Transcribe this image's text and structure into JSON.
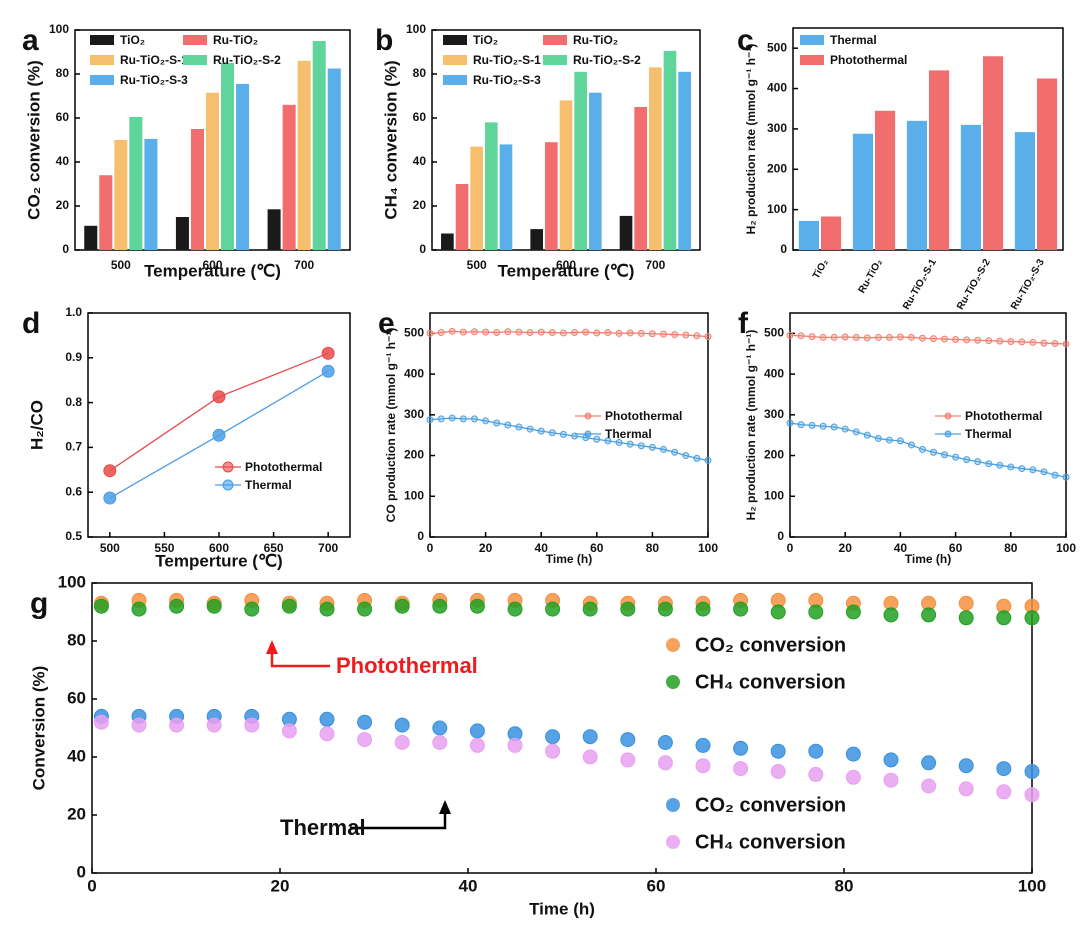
{
  "chart_data": [
    {
      "type": "bar",
      "panel_label": "a",
      "categories": [
        "500",
        "600",
        "700"
      ],
      "series": [
        {
          "name": "TiO₂",
          "color": "#1a1a1a",
          "values": [
            11,
            15,
            18.5
          ]
        },
        {
          "name": "Ru-TiO₂",
          "color": "#f26d6d",
          "values": [
            34,
            55,
            66
          ]
        },
        {
          "name": "Ru-TiO₂-S-1",
          "color": "#f5bf6e",
          "values": [
            50,
            71.5,
            86
          ]
        },
        {
          "name": "Ru-TiO₂-S-2",
          "color": "#5fd49b",
          "values": [
            60.5,
            85,
            95
          ]
        },
        {
          "name": "Ru-TiO₂-S-3",
          "color": "#5aaeea",
          "values": [
            50.5,
            75.5,
            82.5
          ]
        }
      ],
      "ylim": [
        0,
        100
      ],
      "yticks": [
        0,
        20,
        40,
        60,
        80,
        100
      ],
      "xlabel": "Temperature (℃)",
      "ylabel": "CO₂ conversion (%)"
    },
    {
      "type": "bar",
      "panel_label": "b",
      "categories": [
        "500",
        "600",
        "700"
      ],
      "series": [
        {
          "name": "TiO₂",
          "color": "#1a1a1a",
          "values": [
            7.5,
            9.5,
            15.5
          ]
        },
        {
          "name": "Ru-TiO₂",
          "color": "#f26d6d",
          "values": [
            30,
            49,
            65
          ]
        },
        {
          "name": "Ru-TiO₂-S-1",
          "color": "#f5bf6e",
          "values": [
            47,
            68,
            83
          ]
        },
        {
          "name": "Ru-TiO₂-S-2",
          "color": "#5fd49b",
          "values": [
            58,
            81,
            90.5
          ]
        },
        {
          "name": "Ru-TiO₂-S-3",
          "color": "#5aaeea",
          "values": [
            48,
            71.5,
            81
          ]
        }
      ],
      "ylim": [
        0,
        100
      ],
      "yticks": [
        0,
        20,
        40,
        60,
        80,
        100
      ],
      "xlabel": "Temperature (℃)",
      "ylabel": "CH₄ conversion (%)"
    },
    {
      "type": "bar",
      "panel_label": "c",
      "categories": [
        "TiO₂",
        "Ru-TiO₂",
        "Ru-TiO₂-S-1",
        "Ru-TiO₂-S-2",
        "Ru-TiO₂-S-3"
      ],
      "series": [
        {
          "name": "Thermal",
          "color": "#5aaeea",
          "values": [
            72,
            288,
            320,
            310,
            292
          ]
        },
        {
          "name": "Photothermal",
          "color": "#f26d6d",
          "values": [
            83,
            345,
            445,
            480,
            425
          ]
        }
      ],
      "ylim": [
        0,
        550
      ],
      "yticks": [
        0,
        100,
        200,
        300,
        400,
        500
      ],
      "ylabel": "H₂ production rate (mmol g⁻¹ h⁻¹)"
    },
    {
      "type": "line",
      "panel_label": "d",
      "x": [
        500,
        600,
        700
      ],
      "series": [
        {
          "name": "Photothermal",
          "color": "#e84a4a",
          "values": [
            0.648,
            0.813,
            0.91
          ]
        },
        {
          "name": "Thermal",
          "color": "#4a9de8",
          "values": [
            0.587,
            0.727,
            0.87
          ]
        }
      ],
      "xlim": [
        480,
        720
      ],
      "xticks": [
        500,
        550,
        600,
        650,
        700
      ],
      "ylim": [
        0.5,
        1.0
      ],
      "yticks": [
        0.5,
        0.6,
        0.7,
        0.8,
        0.9,
        {
          "value": 1.0,
          "label": "1.0"
        }
      ],
      "xlabel": "Temperture (℃)",
      "ylabel": "H₂/CO"
    },
    {
      "type": "line",
      "panel_label": "e",
      "x": [
        0,
        4,
        8,
        12,
        16,
        20,
        24,
        28,
        32,
        36,
        40,
        44,
        48,
        52,
        56,
        60,
        64,
        68,
        72,
        76,
        80,
        84,
        88,
        92,
        96,
        100
      ],
      "series": [
        {
          "name": "Photothermal",
          "color": "#f08070",
          "values": [
            500,
            502,
            505,
            503,
            504,
            503,
            502,
            504,
            503,
            502,
            503,
            502,
            501,
            502,
            503,
            501,
            502,
            500,
            501,
            500,
            499,
            498,
            497,
            496,
            494,
            492
          ]
        },
        {
          "name": "Thermal",
          "color": "#4aa0e0",
          "values": [
            288,
            290,
            292,
            290,
            290,
            285,
            280,
            275,
            270,
            265,
            260,
            256,
            252,
            248,
            244,
            240,
            236,
            232,
            228,
            224,
            220,
            215,
            208,
            200,
            193,
            188
          ]
        }
      ],
      "xlim": [
        0,
        100
      ],
      "xticks": [
        0,
        20,
        40,
        60,
        80,
        100
      ],
      "ylim": [
        0,
        550
      ],
      "yticks": [
        0,
        100,
        200,
        300,
        400,
        500
      ],
      "xlabel": "Time (h)",
      "ylabel": "CO production rate (mmol g⁻¹ h⁻¹)"
    },
    {
      "type": "line",
      "panel_label": "f",
      "x": [
        0,
        4,
        8,
        12,
        16,
        20,
        24,
        28,
        32,
        36,
        40,
        44,
        48,
        52,
        56,
        60,
        64,
        68,
        72,
        76,
        80,
        84,
        88,
        92,
        96,
        100
      ],
      "series": [
        {
          "name": "Photothermal",
          "color": "#f08070",
          "values": [
            495,
            494,
            492,
            490,
            490,
            491,
            490,
            489,
            490,
            490,
            491,
            490,
            488,
            487,
            486,
            485,
            484,
            483,
            482,
            481,
            480,
            479,
            478,
            476,
            475,
            474
          ]
        },
        {
          "name": "Thermal",
          "color": "#4aa0e0",
          "values": [
            280,
            276,
            274,
            272,
            270,
            265,
            258,
            250,
            242,
            238,
            236,
            226,
            215,
            208,
            202,
            196,
            190,
            185,
            180,
            176,
            172,
            168,
            165,
            160,
            152,
            147
          ]
        }
      ],
      "xlim": [
        0,
        100
      ],
      "xticks": [
        0,
        20,
        40,
        60,
        80,
        100
      ],
      "ylim": [
        0,
        550
      ],
      "yticks": [
        0,
        100,
        200,
        300,
        400,
        500
      ],
      "xlabel": "Time (h)",
      "ylabel": "H₂ production rate (mmol g⁻¹ h⁻¹)"
    },
    {
      "type": "scatter",
      "panel_label": "g",
      "x": [
        1,
        5,
        9,
        13,
        17,
        21,
        25,
        29,
        33,
        37,
        41,
        45,
        49,
        53,
        57,
        61,
        65,
        69,
        73,
        77,
        81,
        85,
        89,
        93,
        97,
        100
      ],
      "series": [
        {
          "name": "CO₂ conversion",
          "color": "#f59040",
          "values": [
            93,
            94,
            94,
            93,
            94,
            93,
            93,
            94,
            93,
            94,
            94,
            94,
            94,
            93,
            93,
            93,
            93,
            94,
            94,
            94,
            93,
            93,
            93,
            93,
            92,
            92
          ]
        },
        {
          "name": "CH₄ conversion",
          "color": "#22a022",
          "values": [
            92,
            91,
            92,
            92,
            91,
            92,
            91,
            91,
            92,
            92,
            92,
            91,
            91,
            91,
            91,
            91,
            91,
            91,
            90,
            90,
            90,
            89,
            89,
            88,
            88,
            88
          ]
        },
        {
          "name": "CO₂ conversion",
          "color": "#3a90e0",
          "values": [
            54,
            54,
            54,
            54,
            54,
            53,
            53,
            52,
            51,
            50,
            49,
            48,
            47,
            47,
            46,
            45,
            44,
            43,
            42,
            42,
            41,
            39,
            38,
            37,
            36,
            35
          ]
        },
        {
          "name": "CH₄ conversion",
          "color": "#e8a0f0",
          "values": [
            52,
            51,
            51,
            51,
            51,
            49,
            48,
            46,
            45,
            45,
            44,
            44,
            42,
            40,
            39,
            38,
            37,
            36,
            35,
            34,
            33,
            32,
            30,
            29,
            28,
            27
          ]
        }
      ],
      "xlim": [
        0,
        100
      ],
      "xticks": [
        0,
        20,
        40,
        60,
        80,
        100
      ],
      "ylim": [
        0,
        100
      ],
      "yticks": [
        0,
        20,
        40,
        60,
        80,
        100
      ],
      "xlabel": "Time (h)",
      "ylabel": "Conversion (%)",
      "annotations": [
        "Photothermal",
        "Thermal"
      ]
    }
  ]
}
